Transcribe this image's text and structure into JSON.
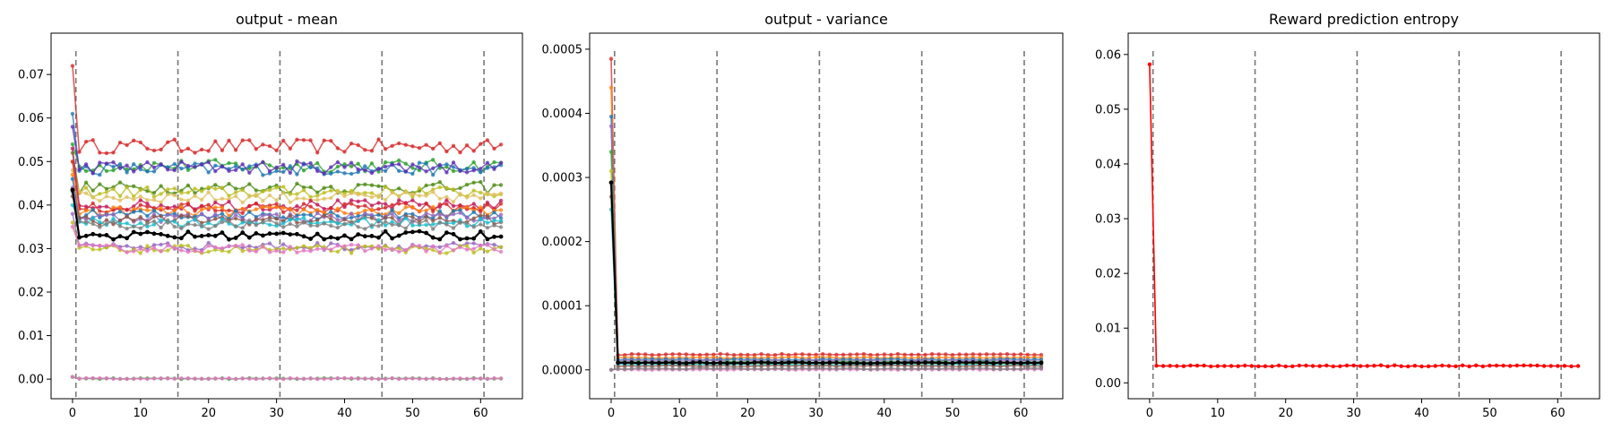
{
  "chart_data": [
    {
      "type": "line",
      "title": "output - mean",
      "xlabel": "",
      "ylabel": "",
      "xlim": [
        -3.15,
        66.15
      ],
      "ylim": [
        -0.0045,
        0.0795
      ],
      "xticks": [
        0,
        10,
        20,
        30,
        40,
        50,
        60
      ],
      "yticks": [
        0.0,
        0.01,
        0.02,
        0.03,
        0.04,
        0.05,
        0.06,
        0.07
      ],
      "ytick_labels": [
        "0.00",
        "0.01",
        "0.02",
        "0.03",
        "0.04",
        "0.05",
        "0.06",
        "0.07"
      ],
      "vlines": [
        0.5,
        15.5,
        30.5,
        45.5,
        60.5
      ],
      "n_points": 64,
      "series": [
        {
          "color": "#d62728",
          "start": 0.072,
          "level": 0.0535
        },
        {
          "color": "#2ca02c",
          "start": 0.054,
          "level": 0.049
        },
        {
          "color": "#1f77b4",
          "start": 0.061,
          "level": 0.0483
        },
        {
          "color": "#5b2fb4",
          "start": 0.058,
          "level": 0.0487
        },
        {
          "color": "#4b8a10",
          "start": 0.052,
          "level": 0.044
        },
        {
          "color": "#bcbd22",
          "start": 0.05,
          "level": 0.043
        },
        {
          "color": "#e0c060",
          "start": 0.048,
          "level": 0.0418
        },
        {
          "color": "#c2185b",
          "start": 0.053,
          "level": 0.04
        },
        {
          "color": "#d62728",
          "start": 0.05,
          "level": 0.0393
        },
        {
          "color": "#ff7f0e",
          "start": 0.047,
          "level": 0.0385
        },
        {
          "color": "#1f77b4",
          "start": 0.046,
          "level": 0.0378
        },
        {
          "color": "#9467bd",
          "start": 0.044,
          "level": 0.0372
        },
        {
          "color": "#8c564b",
          "start": 0.042,
          "level": 0.0366
        },
        {
          "color": "#17becf",
          "start": 0.04,
          "level": 0.036
        },
        {
          "color": "#7f7f7f",
          "start": 0.043,
          "level": 0.0355
        },
        {
          "color": "#9467bd",
          "start": 0.038,
          "level": 0.0305
        },
        {
          "color": "#bcbd22",
          "start": 0.036,
          "level": 0.0298
        },
        {
          "color": "#e377c2",
          "start": 0.035,
          "level": 0.03
        },
        {
          "color": "#2ca02c",
          "start": 0.0005,
          "level": 0.0001
        },
        {
          "color": "#e377c2",
          "start": 0.0005,
          "level": 0.0001
        },
        {
          "color": "#000000",
          "start": 0.0435,
          "level": 0.033
        }
      ]
    },
    {
      "type": "line",
      "title": "output - variance",
      "xlabel": "",
      "ylabel": "",
      "xlim": [
        -3.15,
        66.15
      ],
      "ylim": [
        -4.5e-05,
        0.000525
      ],
      "xticks": [
        0,
        10,
        20,
        30,
        40,
        50,
        60
      ],
      "yticks": [
        0.0,
        0.0001,
        0.0002,
        0.0003,
        0.0004,
        0.0005
      ],
      "ytick_labels": [
        "0.0000",
        "0.0001",
        "0.0002",
        "0.0003",
        "0.0004",
        "0.0005"
      ],
      "vlines": [
        0.5,
        15.5,
        30.5,
        45.5,
        60.5
      ],
      "n_points": 64,
      "series": [
        {
          "color": "#d62728",
          "start": 0.000485,
          "level": 2.4e-05
        },
        {
          "color": "#ff7f0e",
          "start": 0.00044,
          "level": 1.9e-05
        },
        {
          "color": "#1f77b4",
          "start": 0.000395,
          "level": 1.6e-05
        },
        {
          "color": "#9467bd",
          "start": 0.00038,
          "level": 1.4e-05
        },
        {
          "color": "#2ca02c",
          "start": 0.00034,
          "level": 1.2e-05
        },
        {
          "color": "#bcbd22",
          "start": 0.00031,
          "level": 1e-05
        },
        {
          "color": "#17becf",
          "start": 0.00025,
          "level": 8e-06
        },
        {
          "color": "#8c564b",
          "start": 0.00027,
          "level": 6e-06
        },
        {
          "color": "#e377c2",
          "start": 0.0,
          "level": 5e-07
        },
        {
          "color": "#7f7f7f",
          "start": 0.0,
          "level": 2e-06
        },
        {
          "color": "#000000",
          "start": 0.000292,
          "level": 1.1e-05
        }
      ]
    },
    {
      "type": "line",
      "title": "Reward prediction entropy",
      "xlabel": "",
      "ylabel": "",
      "xlim": [
        -3.15,
        66.15
      ],
      "ylim": [
        -0.0029,
        0.0639
      ],
      "xticks": [
        0,
        10,
        20,
        30,
        40,
        50,
        60
      ],
      "yticks": [
        0.0,
        0.01,
        0.02,
        0.03,
        0.04,
        0.05,
        0.06
      ],
      "ytick_labels": [
        "0.00",
        "0.01",
        "0.02",
        "0.03",
        "0.04",
        "0.05",
        "0.06"
      ],
      "vlines": [
        0.5,
        15.5,
        30.5,
        45.5,
        60.5
      ],
      "n_points": 64,
      "series": [
        {
          "color": "#ff0000",
          "start": 0.0582,
          "level": 0.0031
        }
      ]
    }
  ]
}
